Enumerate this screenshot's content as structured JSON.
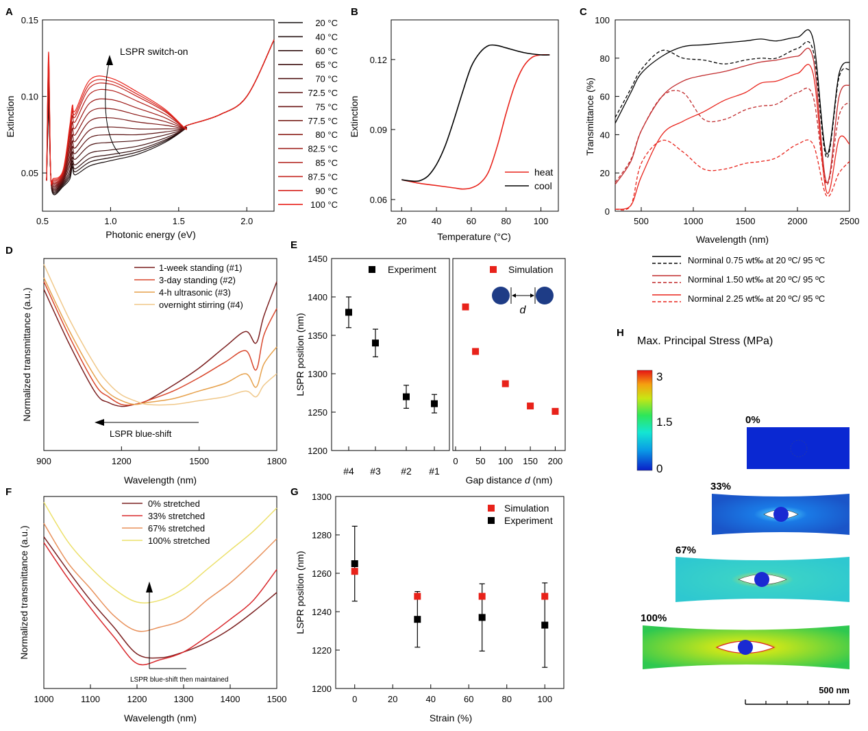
{
  "colors": {
    "black": "#000000",
    "red": "#e8221a",
    "darkred": "#6a1414",
    "orange": "#e86a3a",
    "lightorange": "#e8a35a",
    "yellow": "#ecd86a",
    "sim": "#e8221a"
  },
  "panelA": {
    "letter": "A",
    "xlabel": "Photonic energy (eV)",
    "ylabel": "Extinction",
    "xticks": [
      "0.5",
      "1.0",
      "1.5",
      "2.0"
    ],
    "yticks": [
      "0.05",
      "0.10",
      "0.15"
    ],
    "annotation": "LSPR switch-on",
    "legend": [
      "20 °C",
      "40 °C",
      "60 °C",
      "65 °C",
      "70 °C",
      "72.5 °C",
      "75 °C",
      "77.5 °C",
      "80 °C",
      "82.5 °C",
      "85 °C",
      "87.5 °C",
      "90 °C",
      "100 °C"
    ]
  },
  "panelB": {
    "letter": "B",
    "xlabel": "Temperature (°C)",
    "ylabel": "Extinction",
    "xticks": [
      "20",
      "40",
      "60",
      "80",
      "100"
    ],
    "yticks": [
      "0.06",
      "0.09",
      "0.12"
    ],
    "legend": [
      "heat",
      "cool"
    ]
  },
  "panelC": {
    "letter": "C",
    "xlabel": "Wavelength (nm)",
    "ylabel": "Transmittance (%)",
    "xticks": [
      "500",
      "1000",
      "1500",
      "2000",
      "2500"
    ],
    "yticks": [
      "0",
      "20",
      "40",
      "60",
      "80",
      "100"
    ],
    "legend": [
      "Norminal 0.75 wt‰ at 20 ºC/ 95 ºC",
      "Norminal 1.50 wt‰ at 20 ºC/ 95 ºC",
      "Norminal 2.25 wt‰ at 20 ºC/ 95 ºC"
    ]
  },
  "panelD": {
    "letter": "D",
    "xlabel": "Wavelength (nm)",
    "ylabel": "Normalized transmittance (a.u.)",
    "xticks": [
      "900",
      "1200",
      "1500",
      "1800"
    ],
    "annotation": "LSPR blue-shift",
    "legend": [
      "1-week standing (#1)",
      "3-day standing (#2)",
      "4-h ultrasonic (#3)",
      "overnight stirring (#4)"
    ]
  },
  "panelE": {
    "letter": "E",
    "ylabel": "LSPR position (nm)",
    "yticks": [
      "1200",
      "1250",
      "1300",
      "1350",
      "1400",
      "1450"
    ],
    "left_xticks": [
      "#4",
      "#3",
      "#2",
      "#1"
    ],
    "left_legend": "Experiment",
    "right_legend": "Simulation",
    "right_xticks": [
      "0",
      "50",
      "100",
      "150",
      "200"
    ],
    "right_xlabel_a": "Gap distance ",
    "right_xlabel_d": "d",
    "right_xlabel_b": " (nm)",
    "inset_label": "d"
  },
  "panelF": {
    "letter": "F",
    "xlabel": "Wavelength (nm)",
    "ylabel": "Normalized transmittance (a.u.)",
    "xticks": [
      "1000",
      "1100",
      "1200",
      "1300",
      "1400",
      "1500"
    ],
    "annotation": "LSPR blue-shift then maintained",
    "legend": [
      "0% stretched",
      "33% stretched",
      "67% stretched",
      "100% stretched"
    ]
  },
  "panelG": {
    "letter": "G",
    "xlabel": "Strain (%)",
    "ylabel": "LSPR position (nm)",
    "xticks": [
      "0",
      "20",
      "40",
      "60",
      "80",
      "100"
    ],
    "yticks": [
      "1200",
      "1220",
      "1240",
      "1260",
      "1280",
      "1300"
    ],
    "legend": [
      "Simulation",
      "Experiment"
    ]
  },
  "panelH": {
    "letter": "H",
    "title": "Max. Principal Stress (MPa)",
    "colorbar_ticks": [
      "3",
      "1.5",
      "0"
    ],
    "strain_labels": [
      "0%",
      "33%",
      "67%",
      "100%"
    ],
    "scalebar": "500 nm"
  },
  "chart_data": [
    {
      "panel": "A",
      "type": "line",
      "xlabel": "Photonic energy (eV)",
      "ylabel": "Extinction",
      "xlim": [
        0.5,
        2.2
      ],
      "ylim": [
        0.025,
        0.15
      ],
      "series_temps_C": [
        20,
        40,
        60,
        65,
        70,
        72.5,
        75,
        77.5,
        80,
        82.5,
        85,
        87.5,
        90,
        100
      ],
      "peak_extinction_at_1eV": [
        0.058,
        0.06,
        0.062,
        0.065,
        0.07,
        0.075,
        0.08,
        0.086,
        0.092,
        0.098,
        0.104,
        0.108,
        0.11,
        0.112
      ],
      "common_points": {
        "x": [
          0.53,
          0.58,
          1.55,
          2.0,
          2.2
        ],
        "y": [
          0.045,
          0.036,
          0.079,
          0.1,
          0.137
        ]
      }
    },
    {
      "panel": "B",
      "type": "line",
      "xlabel": "Temperature (°C)",
      "ylabel": "Extinction",
      "xlim": [
        14,
        110
      ],
      "ylim": [
        0.055,
        0.137
      ],
      "series": [
        {
          "name": "heat",
          "x": [
            20,
            30,
            40,
            50,
            55,
            60,
            65,
            70,
            75,
            80,
            85,
            90,
            95,
            100,
            105
          ],
          "y": [
            0.0685,
            0.067,
            0.066,
            0.065,
            0.0645,
            0.065,
            0.067,
            0.072,
            0.083,
            0.097,
            0.109,
            0.117,
            0.121,
            0.122,
            0.122
          ]
        },
        {
          "name": "cool",
          "x": [
            20,
            25,
            30,
            35,
            40,
            45,
            50,
            55,
            60,
            65,
            70,
            75,
            80,
            90,
            100,
            105
          ],
          "y": [
            0.0685,
            0.068,
            0.068,
            0.07,
            0.075,
            0.083,
            0.094,
            0.106,
            0.117,
            0.123,
            0.126,
            0.126,
            0.125,
            0.123,
            0.122,
            0.122
          ]
        }
      ]
    },
    {
      "panel": "C",
      "type": "line",
      "xlabel": "Wavelength (nm)",
      "ylabel": "Transmittance (%)",
      "xlim": [
        250,
        2500
      ],
      "ylim": [
        0,
        100
      ],
      "x": [
        250,
        400,
        500,
        700,
        900,
        1100,
        1300,
        1500,
        1650,
        1800,
        2000,
        2150,
        2280,
        2400,
        2500
      ],
      "series": [
        {
          "name": "0.75 wt‰ 20 °C",
          "y": [
            46,
            62,
            72,
            81,
            86,
            87,
            88,
            89,
            90,
            89,
            91,
            90,
            30,
            72,
            78
          ]
        },
        {
          "name": "0.75 wt‰ 95 °C",
          "y": [
            49,
            64,
            74,
            84,
            80,
            79,
            77,
            79,
            80,
            80,
            85,
            84,
            28,
            70,
            74
          ]
        },
        {
          "name": "1.50 wt‰ 20 °C",
          "y": [
            14,
            26,
            42,
            60,
            68,
            71,
            73,
            76,
            78,
            79,
            81,
            80,
            15,
            60,
            66
          ]
        },
        {
          "name": "1.50 wt‰ 95 °C",
          "y": [
            15,
            27,
            42,
            60,
            62,
            48,
            48,
            53,
            55,
            56,
            62,
            60,
            14,
            50,
            57
          ]
        },
        {
          "name": "2.25 wt‰ 20 °C",
          "y": [
            1,
            3,
            18,
            40,
            47,
            52,
            58,
            62,
            67,
            68,
            72,
            72,
            10,
            38,
            35
          ]
        },
        {
          "name": "2.25 wt‰ 95 °C",
          "y": [
            1,
            3,
            25,
            37,
            31,
            22,
            22,
            25,
            26,
            28,
            35,
            35,
            8,
            20,
            26
          ]
        }
      ]
    },
    {
      "panel": "D",
      "type": "line",
      "xlabel": "Wavelength (nm)",
      "ylabel": "Normalized transmittance (a.u.)",
      "xlim": [
        900,
        1800
      ],
      "ylim": [
        0,
        1
      ],
      "x": [
        900,
        1000,
        1100,
        1150,
        1200,
        1250,
        1300,
        1400,
        1500,
        1600,
        1680,
        1720,
        1750,
        1800
      ],
      "series": [
        {
          "name": "1-week standing (#1)",
          "y": [
            0.84,
            0.55,
            0.3,
            0.25,
            0.23,
            0.24,
            0.26,
            0.34,
            0.43,
            0.54,
            0.62,
            0.56,
            0.7,
            0.88
          ]
        },
        {
          "name": "3-day standing (#2)",
          "y": [
            0.88,
            0.59,
            0.34,
            0.28,
            0.24,
            0.24,
            0.26,
            0.31,
            0.38,
            0.46,
            0.52,
            0.42,
            0.6,
            0.74
          ]
        },
        {
          "name": "4-h ultrasonic (#3)",
          "y": [
            0.9,
            0.62,
            0.38,
            0.3,
            0.26,
            0.24,
            0.25,
            0.27,
            0.31,
            0.35,
            0.4,
            0.33,
            0.45,
            0.54
          ]
        },
        {
          "name": "overnight stirring (#4)",
          "y": [
            0.97,
            0.68,
            0.44,
            0.35,
            0.29,
            0.26,
            0.24,
            0.24,
            0.26,
            0.28,
            0.31,
            0.28,
            0.34,
            0.4
          ]
        }
      ]
    },
    {
      "panel": "E-left",
      "type": "scatter",
      "ylabel": "LSPR position (nm)",
      "ylim": [
        1200,
        1450
      ],
      "categories": [
        "#4",
        "#3",
        "#2",
        "#1"
      ],
      "series": [
        {
          "name": "Experiment",
          "values": [
            1380,
            1340,
            1270,
            1261
          ],
          "errors": [
            20,
            18,
            15,
            12
          ]
        }
      ]
    },
    {
      "panel": "E-right",
      "type": "scatter",
      "xlabel": "Gap distance d (nm)",
      "xlim": [
        0,
        220
      ],
      "ylim": [
        1200,
        1450
      ],
      "series": [
        {
          "name": "Simulation",
          "x": [
            20,
            40,
            100,
            150,
            200
          ],
          "y": [
            1387,
            1329,
            1287,
            1258,
            1251
          ]
        }
      ]
    },
    {
      "panel": "F",
      "type": "line",
      "xlabel": "Wavelength (nm)",
      "ylabel": "Normalized transmittance (a.u.)",
      "xlim": [
        1000,
        1500
      ],
      "ylim": [
        0,
        1
      ],
      "x": [
        1000,
        1050,
        1100,
        1150,
        1200,
        1250,
        1300,
        1350,
        1400,
        1450,
        1500
      ],
      "series": [
        {
          "name": "0% stretched",
          "y": [
            0.79,
            0.62,
            0.46,
            0.32,
            0.18,
            0.16,
            0.19,
            0.24,
            0.31,
            0.4,
            0.5
          ]
        },
        {
          "name": "33% stretched",
          "y": [
            0.76,
            0.58,
            0.42,
            0.27,
            0.13,
            0.15,
            0.19,
            0.27,
            0.36,
            0.46,
            0.62
          ]
        },
        {
          "name": "67% stretched",
          "y": [
            0.86,
            0.66,
            0.52,
            0.38,
            0.3,
            0.32,
            0.36,
            0.46,
            0.55,
            0.66,
            0.78
          ]
        },
        {
          "name": "100% stretched",
          "y": [
            0.97,
            0.77,
            0.63,
            0.52,
            0.45,
            0.46,
            0.52,
            0.62,
            0.72,
            0.82,
            0.94
          ]
        }
      ]
    },
    {
      "panel": "G",
      "type": "scatter",
      "xlabel": "Strain (%)",
      "ylabel": "LSPR position (nm)",
      "xlim": [
        -10,
        110
      ],
      "ylim": [
        1200,
        1300
      ],
      "series": [
        {
          "name": "Simulation",
          "x": [
            0,
            33,
            67,
            100
          ],
          "y": [
            1261,
            1248,
            1248,
            1248
          ]
        },
        {
          "name": "Experiment",
          "x": [
            0,
            33,
            67,
            100
          ],
          "y": [
            1265,
            1236,
            1237,
            1233
          ],
          "errors": [
            19.5,
            14.5,
            17.5,
            22
          ]
        }
      ]
    }
  ]
}
